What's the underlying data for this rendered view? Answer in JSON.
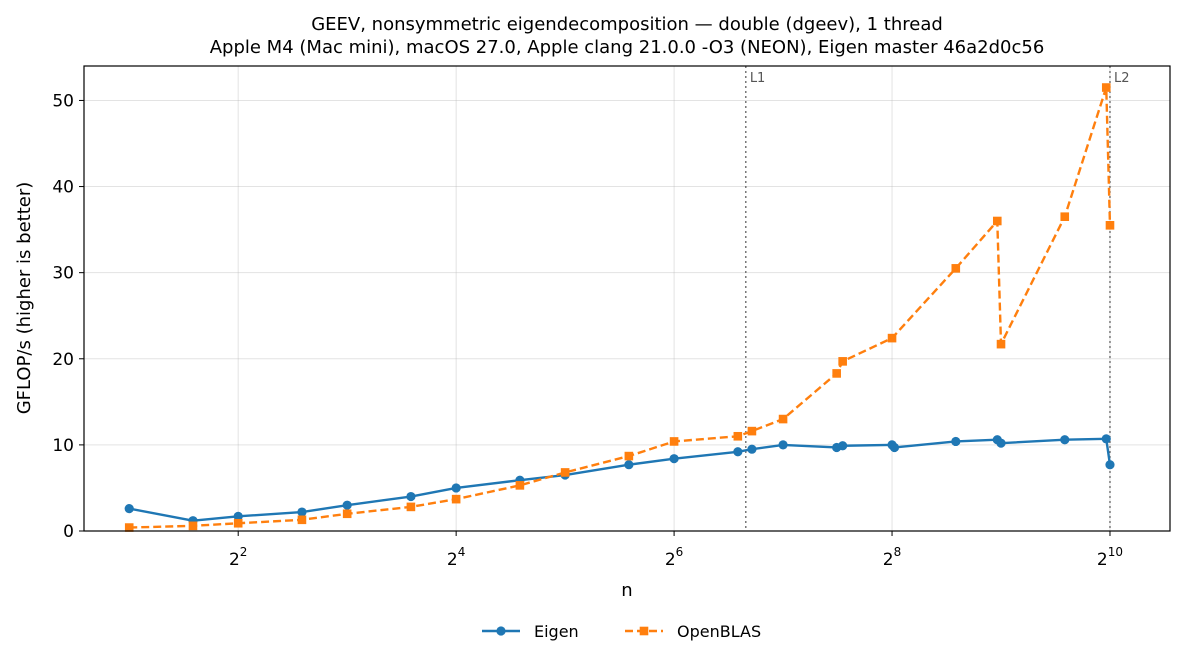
{
  "chart_data": {
    "type": "line",
    "title": "GEEV, nonsymmetric eigendecomposition — double (dgeev), 1 thread",
    "subtitle": "Apple M4 (Mac mini), macOS 27.0, Apple clang 21.0.0 -O3 (NEON), Eigen master 46a2d0c56",
    "xlabel": "n",
    "ylabel": "GFLOP/s (higher is better)",
    "xscale": "log2",
    "xlim": [
      1.5,
      1500
    ],
    "ylim": [
      0,
      54
    ],
    "grid": true,
    "legend_position": "bottom-center",
    "x_ticks": [
      {
        "value": 4,
        "base": "2",
        "exp": "2"
      },
      {
        "value": 16,
        "base": "2",
        "exp": "4"
      },
      {
        "value": 64,
        "base": "2",
        "exp": "6"
      },
      {
        "value": 256,
        "base": "2",
        "exp": "8"
      },
      {
        "value": 1024,
        "base": "2",
        "exp": "10"
      }
    ],
    "y_ticks": [
      "0",
      "10",
      "20",
      "30",
      "40",
      "50"
    ],
    "annotations": [
      {
        "label": "L1",
        "x": 101
      },
      {
        "label": "L2",
        "x": 1024
      }
    ],
    "series": [
      {
        "name": "Eigen",
        "color": "#1f77b4",
        "marker": "circle",
        "linestyle": "solid",
        "x": [
          2,
          3,
          4,
          6,
          8,
          12,
          16,
          24,
          32,
          48,
          64,
          96,
          105,
          128,
          180,
          187,
          256,
          260,
          384,
          500,
          512,
          768,
          1000,
          1024
        ],
        "y": [
          2.6,
          1.2,
          1.7,
          2.2,
          3.0,
          4.0,
          5.0,
          5.9,
          6.5,
          7.7,
          8.4,
          9.2,
          9.5,
          10.0,
          9.7,
          9.9,
          10.0,
          9.7,
          10.4,
          10.6,
          10.2,
          10.6,
          10.7,
          7.7
        ]
      },
      {
        "name": "OpenBLAS",
        "color": "#ff7f0e",
        "marker": "square",
        "linestyle": "dashed",
        "x": [
          2,
          3,
          4,
          6,
          8,
          12,
          16,
          24,
          32,
          48,
          64,
          96,
          105,
          128,
          180,
          187,
          256,
          384,
          500,
          512,
          768,
          1000,
          1024
        ],
        "y": [
          0.4,
          0.6,
          0.9,
          1.3,
          2.0,
          2.8,
          3.7,
          5.3,
          6.8,
          8.7,
          10.4,
          11.0,
          11.6,
          13.0,
          18.3,
          19.7,
          22.4,
          30.5,
          36.0,
          21.7,
          36.5,
          51.5,
          35.5
        ]
      }
    ]
  }
}
